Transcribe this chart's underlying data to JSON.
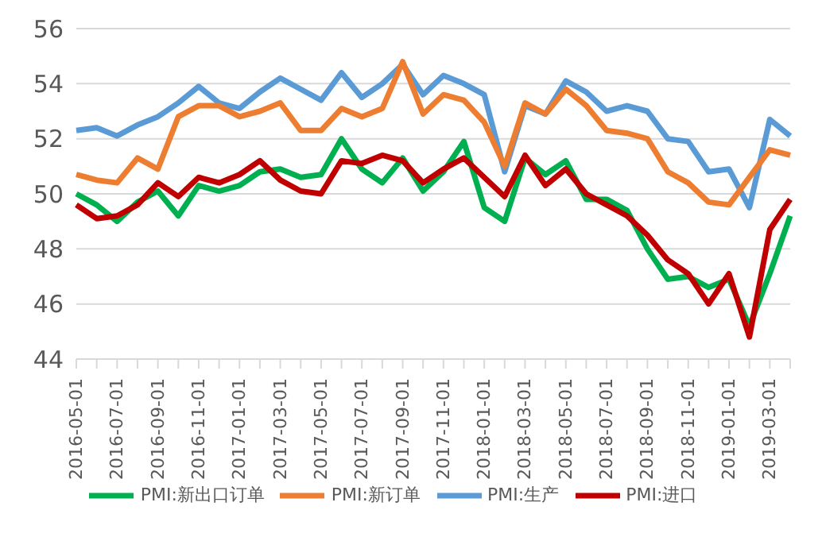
{
  "chart_data": {
    "type": "line",
    "categories": [
      "2016-05-01",
      null,
      "2016-07-01",
      null,
      "2016-09-01",
      null,
      "2016-11-01",
      null,
      "2017-01-01",
      null,
      "2017-03-01",
      null,
      "2017-05-01",
      null,
      "2017-07-01",
      null,
      "2017-09-01",
      null,
      "2017-11-01",
      null,
      "2018-01-01",
      null,
      "2018-03-01",
      null,
      "2018-05-01",
      null,
      "2018-07-01",
      null,
      "2018-09-01",
      null,
      "2018-11-01",
      null,
      "2019-01-01",
      null,
      "2019-03-01",
      null
    ],
    "series": [
      {
        "name": "PMI:生产",
        "color": "#5b9bd5",
        "values": [
          52.3,
          52.4,
          52.1,
          52.5,
          52.8,
          53.3,
          53.9,
          53.3,
          53.1,
          53.7,
          54.2,
          53.8,
          53.4,
          54.4,
          53.5,
          54.0,
          54.7,
          53.6,
          54.3,
          54.0,
          53.6,
          50.8,
          53.2,
          52.9,
          54.1,
          53.7,
          53.0,
          53.2,
          53.0,
          52.0,
          51.9,
          50.8,
          50.9,
          49.5,
          52.7,
          52.1
        ]
      },
      {
        "name": "PMI:新订单",
        "color": "#ed7d31",
        "values": [
          50.7,
          50.5,
          50.4,
          51.3,
          50.9,
          52.8,
          53.2,
          53.2,
          52.8,
          53.0,
          53.3,
          52.3,
          52.3,
          53.1,
          52.8,
          53.1,
          54.8,
          52.9,
          53.6,
          53.4,
          52.6,
          51.0,
          53.3,
          52.9,
          53.8,
          53.2,
          52.3,
          52.2,
          52.0,
          50.8,
          50.4,
          49.7,
          49.6,
          50.6,
          51.6,
          51.4
        ]
      },
      {
        "name": "PMI:新出口订单",
        "color": "#00b050",
        "values": [
          50.0,
          49.6,
          49.0,
          49.7,
          50.1,
          49.2,
          50.3,
          50.1,
          50.3,
          50.8,
          50.9,
          50.6,
          50.7,
          52.0,
          50.9,
          50.4,
          51.3,
          50.1,
          50.8,
          51.9,
          49.5,
          49.0,
          51.3,
          50.7,
          51.2,
          49.8,
          49.8,
          49.4,
          48.0,
          46.9,
          47.0,
          46.6,
          46.9,
          45.2,
          47.1,
          49.2
        ]
      },
      {
        "name": "PMI:进口",
        "color": "#c00000",
        "values": [
          49.6,
          49.1,
          49.2,
          49.6,
          50.4,
          49.9,
          50.6,
          50.4,
          50.7,
          51.2,
          50.5,
          50.1,
          50.0,
          51.2,
          51.1,
          51.4,
          51.2,
          50.4,
          50.9,
          51.3,
          50.6,
          49.9,
          51.4,
          50.3,
          50.9,
          50.0,
          49.6,
          49.2,
          48.5,
          47.6,
          47.1,
          46.0,
          47.1,
          44.8,
          48.7,
          49.8
        ]
      }
    ],
    "ylim": [
      44,
      56
    ],
    "yticks": [
      44,
      46,
      48,
      50,
      52,
      54,
      56
    ],
    "grid": "y",
    "legend": "bottom",
    "marker": "none",
    "line_style": "solid"
  }
}
